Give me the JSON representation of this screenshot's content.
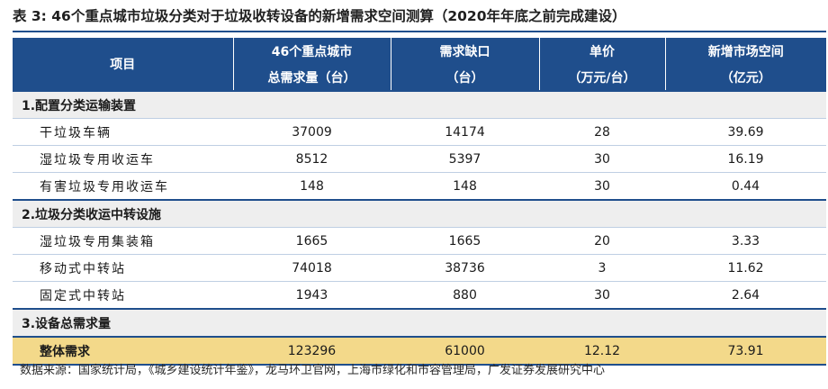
{
  "title": "表 3:  46个重点城市垃圾分类对于垃圾收转设备的新增需求空间测算（2020年年底之前完成建设）",
  "colors": {
    "header_bg": "#1f4e8c",
    "section_bg": "#eeeeee",
    "total_bg": "#f3d98a"
  },
  "header": {
    "item": "项目",
    "col1": [
      "46个重点城市",
      "总需求量（台）"
    ],
    "col2": [
      "需求缺口",
      "（台）"
    ],
    "col3": [
      "单价",
      "（万元/台）"
    ],
    "col4": [
      "新增市场空间",
      "（亿元）"
    ]
  },
  "sections": [
    {
      "title": "1.配置分类运输装置",
      "rows": [
        {
          "label": "干垃圾车辆",
          "total": "37009",
          "gap": "14174",
          "price": "28",
          "space": "39.69"
        },
        {
          "label": "湿垃圾专用收运车",
          "total": "8512",
          "gap": "5397",
          "price": "30",
          "space": "16.19"
        },
        {
          "label": "有害垃圾专用收运车",
          "total": "148",
          "gap": "148",
          "price": "30",
          "space": "0.44"
        }
      ]
    },
    {
      "title": "2.垃圾分类收运中转设施",
      "rows": [
        {
          "label": "湿垃圾专用集装箱",
          "total": "1665",
          "gap": "1665",
          "price": "20",
          "space": "3.33"
        },
        {
          "label": "移动式中转站",
          "total": "74018",
          "gap": "38736",
          "price": "3",
          "space": "11.62"
        },
        {
          "label": "固定式中转站",
          "total": "1943",
          "gap": "880",
          "price": "30",
          "space": "2.64"
        }
      ]
    },
    {
      "title": "3.设备总需求量",
      "rows": []
    }
  ],
  "total": {
    "label": "整体需求",
    "total": "123296",
    "gap": "61000",
    "price": "12.12",
    "space": "73.91"
  },
  "source": "数据来源：国家统计局，《城乡建设统计年鉴》，龙马环卫官网，上海市绿化和市容管理局，广发证券发展研究中心"
}
